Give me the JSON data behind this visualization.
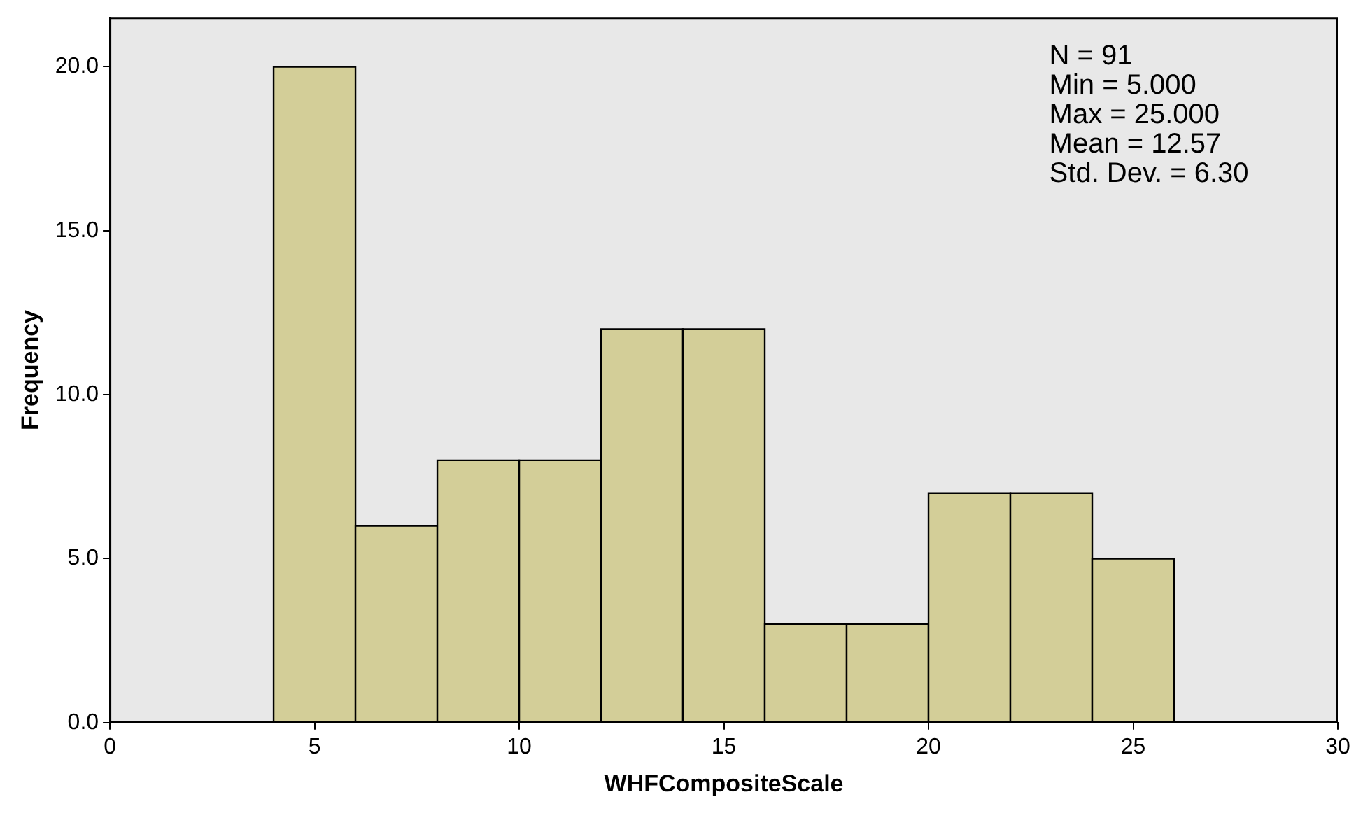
{
  "chart_data": {
    "type": "histogram",
    "xlabel": "WHFCompositeScale",
    "ylabel": "Frequency",
    "bins": [
      4,
      6,
      8,
      10,
      12,
      14,
      16,
      18,
      20,
      22,
      24,
      26
    ],
    "values": [
      20,
      6,
      8,
      8,
      12,
      12,
      3,
      3,
      7,
      7,
      5
    ],
    "color": "#d3ce98",
    "xlim": [
      0,
      30
    ],
    "xticks": [
      0,
      5,
      10,
      15,
      20,
      25,
      30
    ],
    "ylim": [
      0,
      21.5
    ],
    "yticks": [
      {
        "value": 0,
        "label": "0.0"
      },
      {
        "value": 5,
        "label": "5.0"
      },
      {
        "value": 10,
        "label": "10.0"
      },
      {
        "value": 15,
        "label": "15.0"
      },
      {
        "value": 20,
        "label": "20.0"
      }
    ],
    "grid": false,
    "legend": false,
    "annotations": [
      "N = 91",
      "Min = 5.000",
      "Max = 25.000",
      "Mean = 12.57",
      "Std. Dev. = 6.30"
    ]
  }
}
